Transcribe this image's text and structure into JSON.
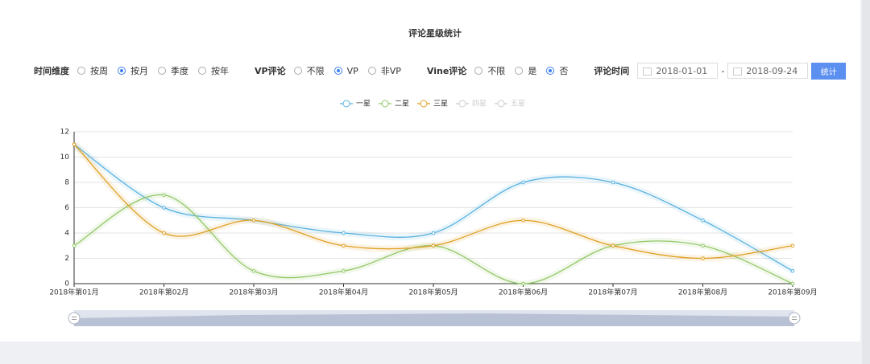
{
  "chart_data": {
    "type": "line",
    "title": "评论星级统计",
    "categories": [
      "2018年第01月",
      "2018年第02月",
      "2018年第03月",
      "2018年第04月",
      "2018年第05月",
      "2018年第06月",
      "2018年第07月",
      "2018年第08月",
      "2018年第09月"
    ],
    "series": [
      {
        "name": "一星",
        "color": "#5ab1e0",
        "values": [
          11,
          6,
          5,
          4,
          4,
          8,
          8,
          5,
          1
        ]
      },
      {
        "name": "二星",
        "color": "#91c866",
        "values": [
          3,
          7,
          1,
          1,
          3,
          0,
          3,
          3,
          0
        ]
      },
      {
        "name": "三星",
        "color": "#dfa023",
        "values": [
          11,
          4,
          5,
          3,
          3,
          5,
          3,
          2,
          3
        ]
      }
    ],
    "hidden_series": [
      "四星",
      "五星"
    ],
    "ylim": [
      0,
      12
    ],
    "yticks": [
      0,
      2,
      4,
      6,
      8,
      10,
      12
    ],
    "grid": true,
    "smooth": true
  },
  "controls": {
    "groups": [
      {
        "label": "时间维度",
        "options": [
          "按周",
          "按月",
          "季度",
          "按年"
        ],
        "selected": 1
      },
      {
        "label": "VP评论",
        "options": [
          "不限",
          "VP",
          "非VP"
        ],
        "selected": 1
      },
      {
        "label": "Vine评论",
        "options": [
          "不限",
          "是",
          "否"
        ],
        "selected": 2
      }
    ],
    "date": {
      "label": "评论时间",
      "start": "2018-01-01",
      "separator": "-",
      "end": "2018-09-24"
    },
    "button": "统计"
  }
}
